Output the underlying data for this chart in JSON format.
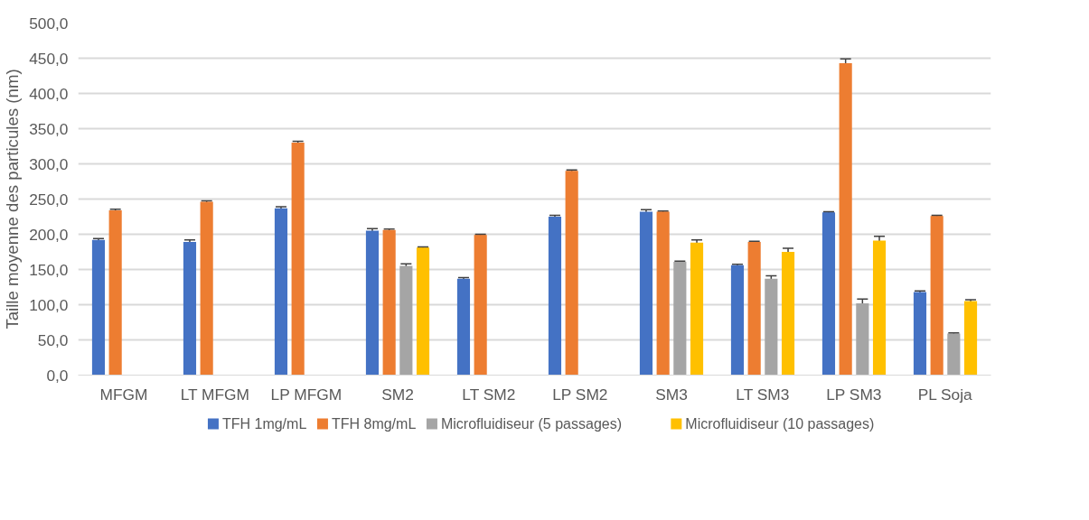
{
  "chart_data": {
    "type": "bar",
    "ylabel": "Taille moyenne des particules (nm)",
    "categories": [
      "MFGM",
      "LT MFGM",
      "LP MFGM",
      "SM2",
      "LT SM2",
      "LP SM2",
      "SM3",
      "LT SM3",
      "LP SM3",
      "PL Soja"
    ],
    "series": [
      {
        "name": "TFH 1mg/mL",
        "color": "#4472c4",
        "values": [
          192,
          189,
          237,
          205,
          137,
          225,
          232,
          156,
          231,
          118
        ],
        "errors": [
          2,
          3,
          2,
          3,
          1.5,
          2,
          3,
          1.5,
          1,
          1.5
        ]
      },
      {
        "name": "TFH 8mg/mL",
        "color": "#ed7d31",
        "values": [
          234,
          246,
          330,
          206,
          199,
          290,
          232,
          189,
          443,
          226
        ],
        "errors": [
          1.5,
          1.5,
          2,
          1.5,
          1,
          1.5,
          1,
          1,
          6,
          1
        ]
      },
      {
        "name": "Microfluidiseur (5 passages)",
        "color": "#a5a5a5",
        "values": [
          null,
          null,
          null,
          155,
          null,
          null,
          161,
          137,
          102,
          59
        ],
        "errors": [
          null,
          null,
          null,
          3,
          null,
          null,
          1,
          4,
          6,
          1
        ]
      },
      {
        "name": "Microfluidiseur (10 passages)",
        "color": "#ffc000",
        "values": [
          null,
          null,
          null,
          181,
          null,
          null,
          188,
          175,
          191,
          105
        ],
        "errors": [
          null,
          null,
          null,
          1,
          null,
          null,
          4,
          5,
          6,
          2
        ]
      }
    ],
    "ylim": [
      0,
      500
    ],
    "yticks": [
      {
        "value": 0,
        "label": "0,0"
      },
      {
        "value": 50,
        "label": "50,0"
      },
      {
        "value": 100,
        "label": "100,0"
      },
      {
        "value": 150,
        "label": "150,0"
      },
      {
        "value": 200,
        "label": "200,0"
      },
      {
        "value": 250,
        "label": "250,0"
      },
      {
        "value": 300,
        "label": "300,0"
      },
      {
        "value": 350,
        "label": "350,0"
      },
      {
        "value": 400,
        "label": "400,0"
      },
      {
        "value": 450,
        "label": "450,0"
      },
      {
        "value": 500,
        "label": "500,0"
      }
    ],
    "grid": "y",
    "legend": "bottom"
  }
}
